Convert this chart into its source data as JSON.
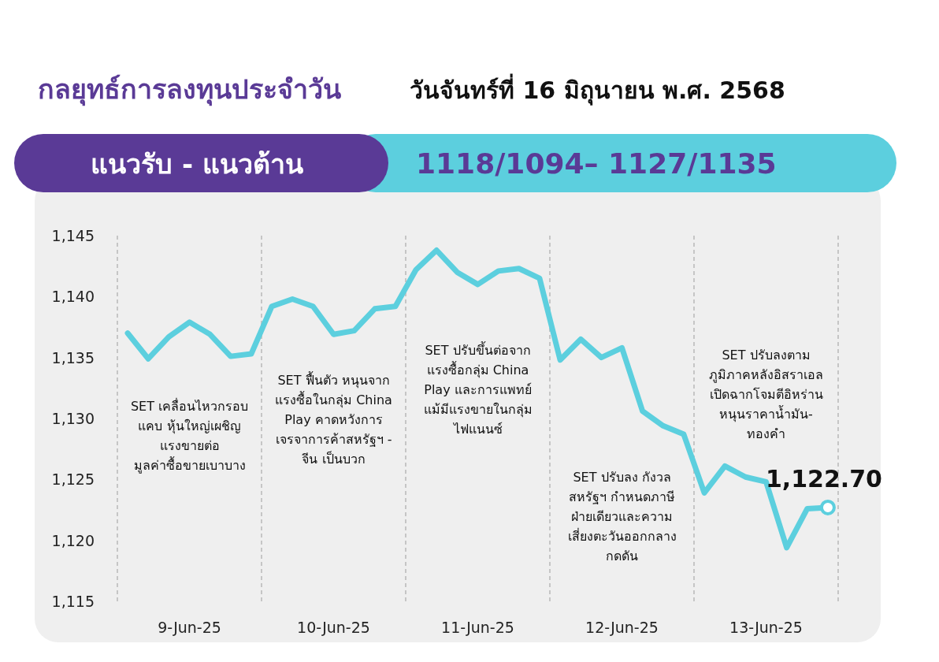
{
  "chart_data": {
    "type": "line",
    "title": "กลยุทธ์การลงทุนประจำวัน",
    "subtitle": "วันจันทร์ที่ 16 มิถุนายน พ.ศ. 2568",
    "categories": [
      null,
      null,
      null,
      "9-Jun-25",
      null,
      null,
      null,
      null,
      null,
      null,
      "10-Jun-25",
      null,
      null,
      null,
      null,
      null,
      null,
      "11-Jun-25",
      null,
      null,
      null,
      null,
      null,
      null,
      "12-Jun-25",
      null,
      null,
      null,
      null,
      null,
      null,
      "13-Jun-25",
      null,
      null,
      null
    ],
    "ylim": [
      1115,
      1145
    ],
    "yticks": [
      {
        "value": 1115,
        "label": "1,115"
      },
      {
        "value": 1120,
        "label": "1,120"
      },
      {
        "value": 1125,
        "label": "1,125"
      },
      {
        "value": 1130,
        "label": "1,130"
      },
      {
        "value": 1135,
        "label": "1,135"
      },
      {
        "value": 1140,
        "label": "1,140"
      },
      {
        "value": 1145,
        "label": "1,145"
      }
    ],
    "series": [
      {
        "color": "#5ccfde",
        "values": [
          1137.0,
          1134.9,
          1136.7,
          1137.9,
          1136.9,
          1135.1,
          1135.3,
          1139.2,
          1139.8,
          1139.2,
          1136.9,
          1137.2,
          1139.0,
          1139.2,
          1142.2,
          1143.8,
          1142.0,
          1141.0,
          1142.1,
          1142.3,
          1141.5,
          1134.8,
          1136.5,
          1135.0,
          1135.8,
          1130.6,
          1129.4,
          1128.7,
          1123.9,
          1126.1,
          1125.2,
          1124.8,
          1119.4,
          1122.6,
          1122.7
        ]
      }
    ],
    "annotations": [
      "แนวรับ - แนวต้าน",
      "1118/1094– 1127/1135",
      "SET เคลื่อนไหวกรอบ\nแคบ หุ้นใหญ่เผชิญ\nแรงขายต่อ\nมูลค่าซื้อขายเบาบาง",
      "SET ฟื้นตัว หนุนจาก\nแรงซื้อในกลุ่ม China\nPlay คาดหวังการ\nเจรจาการค้าสหรัฐฯ -\nจีน เป็นบวก",
      "SET ปรับขึ้นต่อจาก\nแรงซื้อกลุ่ม China\nPlay และการแพทย์\nแม้มีแรงขายในกลุ่ม\nไฟแนนซ์",
      "SET ปรับลง กังวล\nสหรัฐฯ กำหนดภาษี\nฝ่ายเดียวและความ\nเสี่ยงตะวันออกกลาง\nกดดัน",
      "SET ปรับลงตาม\nภูมิภาคหลังอิสราเอล\nเปิดฉากโจมตีอิหร่าน\nหนุนราคาน้ำมัน-\nทองคำ",
      {
        "text": "1,122.70",
        "y": 1122.7
      }
    ]
  }
}
